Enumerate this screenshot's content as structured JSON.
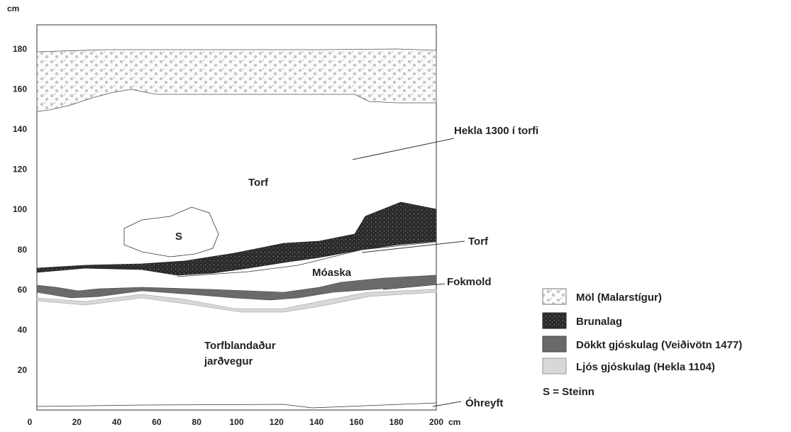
{
  "axes": {
    "y_label": "cm",
    "x_label": "cm",
    "xlim": [
      0,
      200
    ],
    "ylim": [
      0,
      192
    ],
    "xticks": [
      0,
      20,
      40,
      60,
      80,
      100,
      120,
      140,
      160,
      180,
      200
    ],
    "yticks": [
      20,
      40,
      60,
      80,
      100,
      120,
      140,
      160,
      180
    ]
  },
  "annotations": {
    "hekla_1300": "Hekla 1300 í torfi",
    "torf_upper": "Torf",
    "stone": "S",
    "torf_right": "Torf",
    "moaska": "Móaska",
    "fokmold": "Fokmold",
    "torfblandadur_1": "Torfblandaður",
    "torfblandadur_2": "jarðvegur",
    "ohreyft": "Óhreyft"
  },
  "legend": [
    {
      "label": "Möl (Malarstígur)"
    },
    {
      "label": "Brunalag"
    },
    {
      "label": "Dökkt gjóskulag (Veiðivötn 1477)"
    },
    {
      "label": "Ljós gjóskulag (Hekla 1104)"
    }
  ],
  "legend_note": "S = Steinn"
}
